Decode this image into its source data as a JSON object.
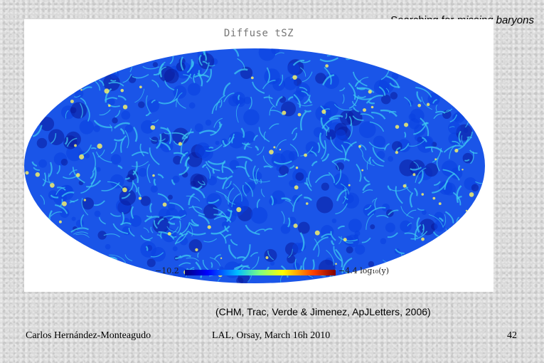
{
  "slide": {
    "title_prefix": "Searching for ",
    "title_emph": "missing baryons",
    "caption": "(CHM, Trac, Verde & Jimenez, ApJLetters, 2006)",
    "footer_left": "Carlos Hernández-Monteagudo",
    "footer_center": "LAL, Orsay, March 16h 2010",
    "page_number": "42"
  },
  "figure": {
    "map_title": "Diffuse tSZ",
    "projection": "mollweide",
    "colormap": "jet",
    "colorbar_min": "−10.2",
    "colorbar_max": "−4.4",
    "colorbar_unit": "log₁₀(y)",
    "colors": {
      "background": "#0a3fe0",
      "filament": "#3ec8f0",
      "hot": "#f4f06a",
      "void": "#0a1a9a"
    }
  }
}
